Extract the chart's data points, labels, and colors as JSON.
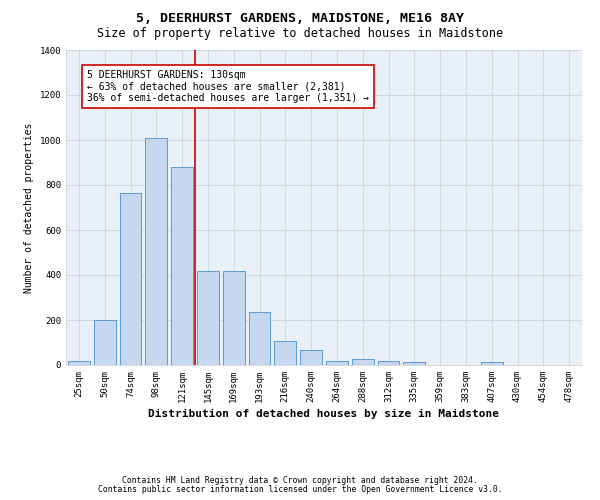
{
  "title": "5, DEERHURST GARDENS, MAIDSTONE, ME16 8AY",
  "subtitle": "Size of property relative to detached houses in Maidstone",
  "xlabel": "Distribution of detached houses by size in Maidstone",
  "ylabel": "Number of detached properties",
  "categories": [
    "25sqm",
    "50sqm",
    "74sqm",
    "98sqm",
    "121sqm",
    "145sqm",
    "169sqm",
    "193sqm",
    "216sqm",
    "240sqm",
    "264sqm",
    "288sqm",
    "312sqm",
    "335sqm",
    "359sqm",
    "383sqm",
    "407sqm",
    "430sqm",
    "454sqm",
    "478sqm"
  ],
  "values": [
    20,
    200,
    765,
    1010,
    880,
    420,
    420,
    235,
    105,
    65,
    20,
    25,
    20,
    12,
    0,
    0,
    12,
    0,
    0,
    0
  ],
  "bar_color": "#c5d8f0",
  "bar_edge_color": "#5b9bd5",
  "bar_edge_width": 0.7,
  "property_line_x": 4.5,
  "property_line_color": "#cc0000",
  "annotation_text": "5 DEERHURST GARDENS: 130sqm\n← 63% of detached houses are smaller (2,381)\n36% of semi-detached houses are larger (1,351) →",
  "annotation_box_color": "#ffffff",
  "annotation_box_edge": "#cc0000",
  "ylim": [
    0,
    1400
  ],
  "yticks": [
    0,
    200,
    400,
    600,
    800,
    1000,
    1200,
    1400
  ],
  "grid_color": "#d0d8e8",
  "background_color": "#eaf0f8",
  "footer_line1": "Contains HM Land Registry data © Crown copyright and database right 2024.",
  "footer_line2": "Contains public sector information licensed under the Open Government Licence v3.0.",
  "title_fontsize": 9.5,
  "subtitle_fontsize": 8.5,
  "xlabel_fontsize": 8,
  "ylabel_fontsize": 7,
  "tick_fontsize": 6.5,
  "footer_fontsize": 5.8,
  "annotation_fontsize": 7
}
